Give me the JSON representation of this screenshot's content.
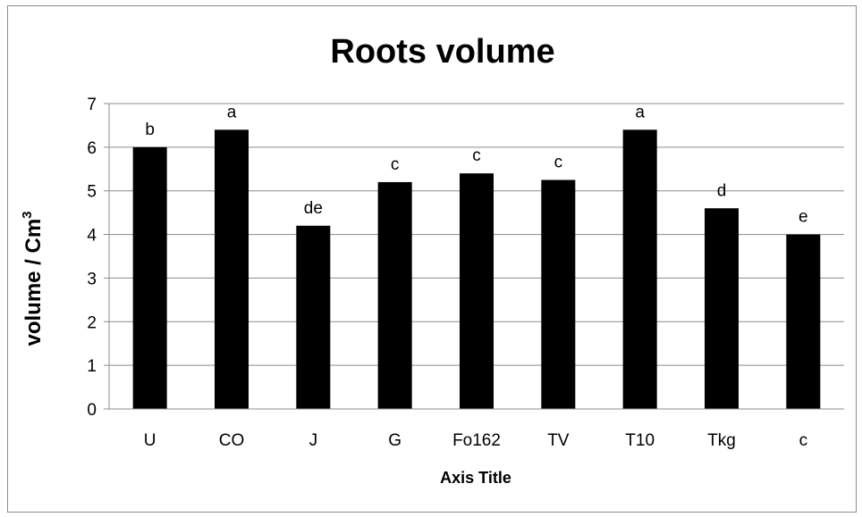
{
  "chart_data": {
    "type": "bar",
    "title": "Roots volume",
    "xlabel": "Axis Title",
    "ylabel": "volume / Cm",
    "ylabel_superscript": "3",
    "ylim": [
      0,
      7
    ],
    "yticks": [
      0,
      1,
      2,
      3,
      4,
      5,
      6,
      7
    ],
    "grid": true,
    "legend": "none",
    "bar_color": "#000000",
    "categories": [
      "U",
      "CO",
      "J",
      "G",
      "Fo162",
      "TV",
      "T10",
      "Tkg",
      "c"
    ],
    "values": [
      6.0,
      6.4,
      4.2,
      5.2,
      5.4,
      5.25,
      6.4,
      4.6,
      4.0
    ],
    "labels": [
      "b",
      "a",
      "de",
      "c",
      "c",
      "c",
      "a",
      "d",
      "e"
    ]
  }
}
